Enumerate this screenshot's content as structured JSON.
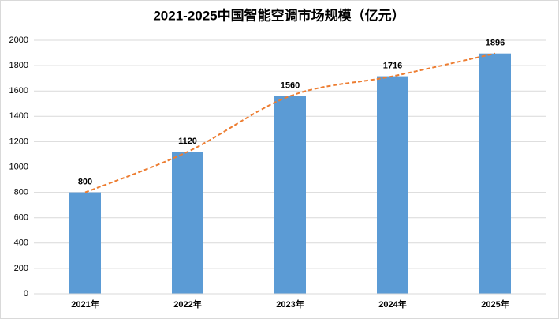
{
  "chart_data": {
    "type": "bar",
    "title": "2021-2025中国智能空调市场规模（亿元）",
    "categories": [
      "2021年",
      "2022年",
      "2023年",
      "2024年",
      "2025年"
    ],
    "values": [
      800,
      1120,
      1560,
      1716,
      1896
    ],
    "color": "#5b9bd5",
    "trendline_color": "#ed7d31",
    "ylim": [
      0,
      2000
    ],
    "yticks": [
      0,
      200,
      400,
      600,
      800,
      1000,
      1200,
      1400,
      1600,
      1800,
      2000
    ],
    "grid": true
  }
}
